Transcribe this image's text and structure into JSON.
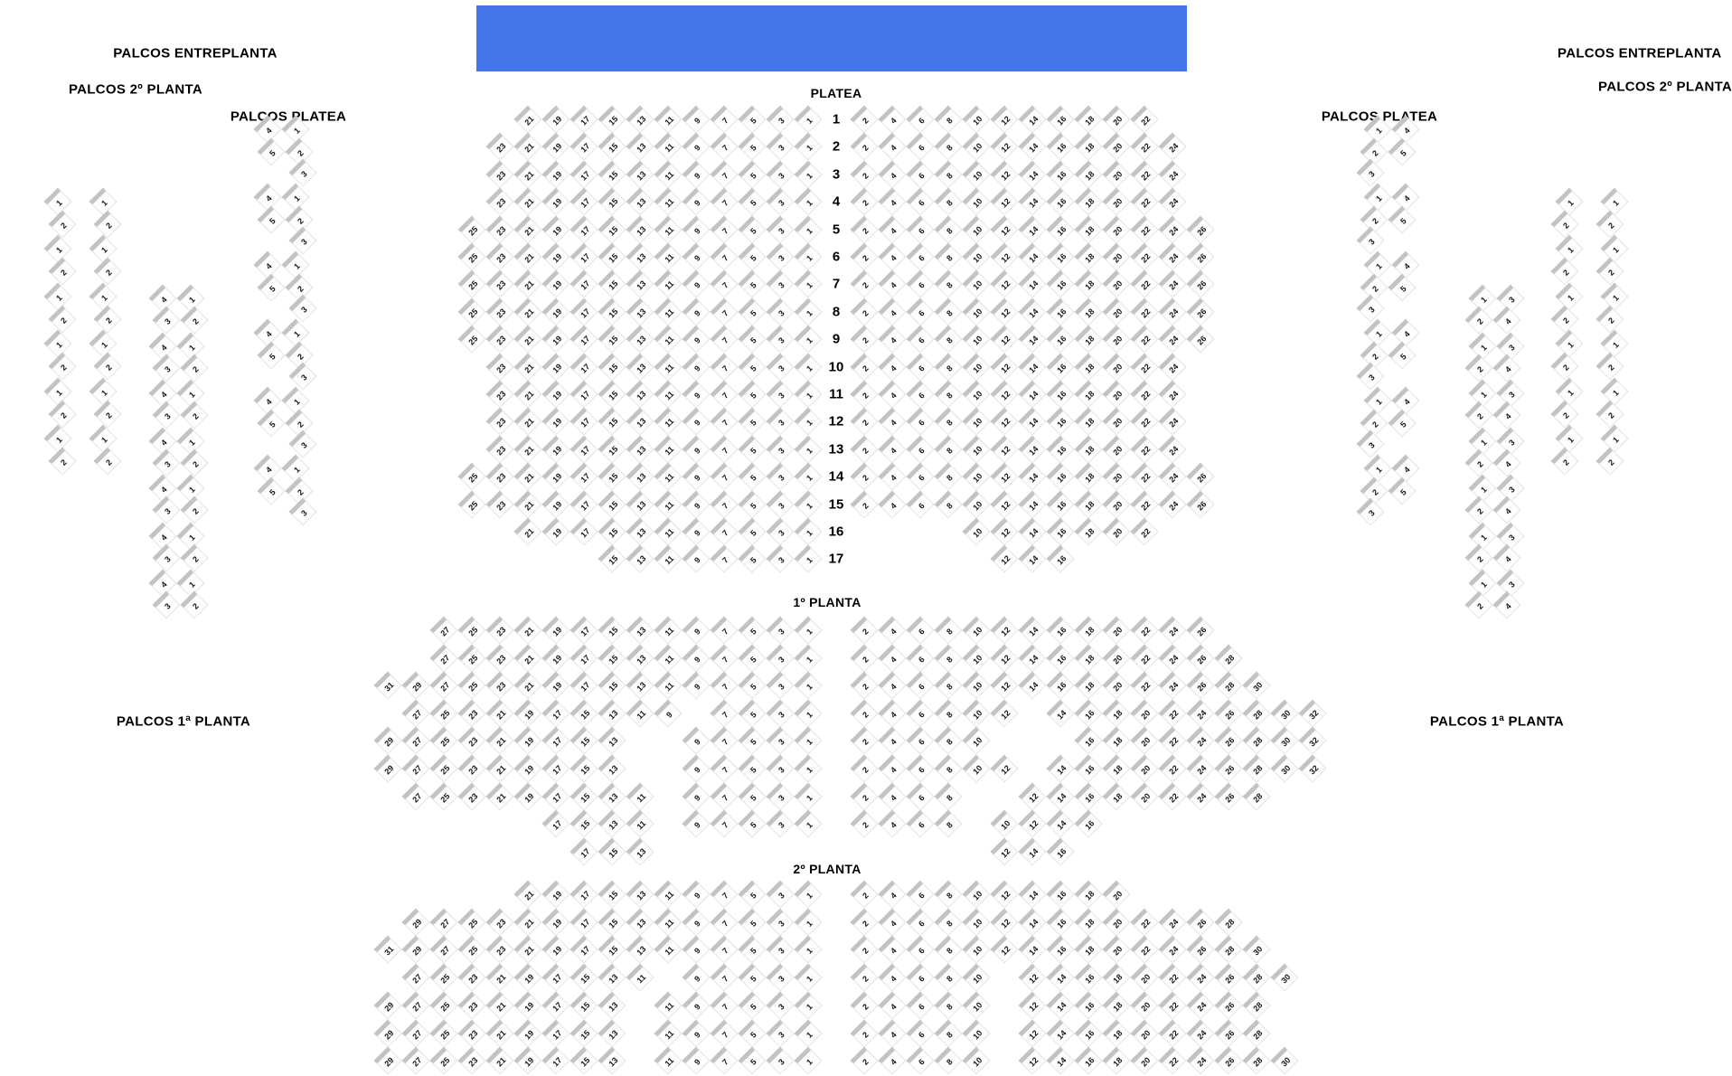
{
  "stage": {
    "color": "#4475E8"
  },
  "section_labels": {
    "platea": "PLATEA",
    "planta1": "1º PLANTA",
    "planta2": "2º PLANTA"
  },
  "palco_labels": {
    "left_entreplanta": "PALCOS ENTREPLANTA",
    "left_planta2": "PALCOS 2º PLANTA",
    "left_platea": "PALCOS PLATEA",
    "left_planta1": "PALCOS 1ª PLANTA",
    "right_entreplanta": "PALCOS ENTREPLANTA",
    "right_planta2": "PALCOS 2º PLANTA",
    "right_platea": "PALCOS PLATEA",
    "right_planta1": "PALCOS 1ª PLANTA"
  },
  "platea": {
    "rows": [
      {
        "label": "1",
        "left": [
          21,
          19,
          17,
          15,
          13,
          11,
          9,
          7,
          5,
          3,
          1
        ],
        "right": [
          2,
          4,
          6,
          8,
          10,
          12,
          14,
          16,
          18,
          20,
          22
        ]
      },
      {
        "label": "2",
        "left": [
          23,
          21,
          19,
          17,
          15,
          13,
          11,
          9,
          7,
          5,
          3,
          1
        ],
        "right": [
          2,
          4,
          6,
          8,
          10,
          12,
          14,
          16,
          18,
          20,
          22,
          24
        ]
      },
      {
        "label": "3",
        "left": [
          23,
          21,
          19,
          17,
          15,
          13,
          11,
          9,
          7,
          5,
          3,
          1
        ],
        "right": [
          2,
          4,
          6,
          8,
          10,
          12,
          14,
          16,
          18,
          20,
          22,
          24
        ]
      },
      {
        "label": "4",
        "left": [
          23,
          21,
          19,
          17,
          15,
          13,
          11,
          9,
          7,
          5,
          3,
          1
        ],
        "right": [
          2,
          4,
          6,
          8,
          10,
          12,
          14,
          16,
          18,
          20,
          22,
          24
        ]
      },
      {
        "label": "5",
        "left": [
          25,
          23,
          21,
          19,
          17,
          15,
          13,
          11,
          9,
          7,
          5,
          3,
          1
        ],
        "right": [
          2,
          4,
          6,
          8,
          10,
          12,
          14,
          16,
          18,
          20,
          22,
          24,
          26
        ]
      },
      {
        "label": "6",
        "left": [
          25,
          23,
          21,
          19,
          17,
          15,
          13,
          11,
          9,
          7,
          5,
          3,
          1
        ],
        "right": [
          2,
          4,
          6,
          8,
          10,
          12,
          14,
          16,
          18,
          20,
          22,
          24,
          26
        ]
      },
      {
        "label": "7",
        "left": [
          25,
          23,
          21,
          19,
          17,
          15,
          13,
          11,
          9,
          7,
          5,
          3,
          1
        ],
        "right": [
          2,
          4,
          6,
          8,
          10,
          12,
          14,
          16,
          18,
          20,
          22,
          24,
          26
        ]
      },
      {
        "label": "8",
        "left": [
          25,
          23,
          21,
          19,
          17,
          15,
          13,
          11,
          9,
          7,
          5,
          3,
          1
        ],
        "right": [
          2,
          4,
          6,
          8,
          10,
          12,
          14,
          16,
          18,
          20,
          22,
          24,
          26
        ]
      },
      {
        "label": "9",
        "left": [
          25,
          23,
          21,
          19,
          17,
          15,
          13,
          11,
          9,
          7,
          5,
          3,
          1
        ],
        "right": [
          2,
          4,
          6,
          8,
          10,
          12,
          14,
          16,
          18,
          20,
          22,
          24,
          26
        ]
      },
      {
        "label": "10",
        "left": [
          23,
          21,
          19,
          17,
          15,
          13,
          11,
          9,
          7,
          5,
          3,
          1
        ],
        "right": [
          2,
          4,
          6,
          8,
          10,
          12,
          14,
          16,
          18,
          20,
          22,
          24
        ]
      },
      {
        "label": "11",
        "left": [
          23,
          21,
          19,
          17,
          15,
          13,
          11,
          9,
          7,
          5,
          3,
          1
        ],
        "right": [
          2,
          4,
          6,
          8,
          10,
          12,
          14,
          16,
          18,
          20,
          22,
          24
        ]
      },
      {
        "label": "12",
        "left": [
          23,
          21,
          19,
          17,
          15,
          13,
          11,
          9,
          7,
          5,
          3,
          1
        ],
        "right": [
          2,
          4,
          6,
          8,
          10,
          12,
          14,
          16,
          18,
          20,
          22,
          24
        ]
      },
      {
        "label": "13",
        "left": [
          23,
          21,
          19,
          17,
          15,
          13,
          11,
          9,
          7,
          5,
          3,
          1
        ],
        "right": [
          2,
          4,
          6,
          8,
          10,
          12,
          14,
          16,
          18,
          20,
          22,
          24
        ]
      },
      {
        "label": "14",
        "left": [
          25,
          23,
          21,
          19,
          17,
          15,
          13,
          11,
          9,
          7,
          5,
          3,
          1
        ],
        "right": [
          2,
          4,
          6,
          8,
          10,
          12,
          14,
          16,
          18,
          20,
          22,
          24,
          26
        ]
      },
      {
        "label": "15",
        "left": [
          25,
          23,
          21,
          19,
          17,
          15,
          13,
          11,
          9,
          7,
          5,
          3,
          1
        ],
        "right": [
          2,
          4,
          6,
          8,
          10,
          12,
          14,
          16,
          18,
          20,
          22,
          24,
          26
        ]
      },
      {
        "label": "16",
        "left": [
          21,
          19,
          17,
          15,
          13,
          11,
          9,
          7,
          5,
          3,
          1
        ],
        "right": [
          10,
          12,
          14,
          16,
          18,
          20,
          22
        ]
      },
      {
        "label": "17",
        "left": [
          15,
          13,
          11,
          9,
          7,
          5,
          3,
          1
        ],
        "right": [
          12,
          14,
          16
        ]
      }
    ]
  },
  "planta1": {
    "rows": [
      {
        "left": [
          27,
          25,
          23,
          21,
          19,
          17,
          15,
          13,
          11,
          9,
          7,
          5,
          3,
          1
        ],
        "right": [
          2,
          4,
          6,
          8,
          10,
          12,
          14,
          16,
          18,
          20,
          22,
          24,
          26
        ]
      },
      {
        "left": [
          27,
          25,
          23,
          21,
          19,
          17,
          15,
          13,
          11,
          9,
          7,
          5,
          3,
          1
        ],
        "right": [
          2,
          4,
          6,
          8,
          10,
          12,
          14,
          16,
          18,
          20,
          22,
          24,
          26,
          28
        ]
      },
      {
        "left": [
          31,
          29,
          27,
          25,
          23,
          21,
          19,
          17,
          15,
          13,
          11,
          9,
          7,
          5,
          3,
          1
        ],
        "right": [
          2,
          4,
          6,
          8,
          10,
          12,
          14,
          16,
          18,
          20,
          22,
          24,
          26,
          28,
          30
        ]
      },
      {
        "left": [
          27,
          25,
          23,
          21,
          19,
          17,
          15,
          13,
          11,
          9,
          7,
          5,
          3,
          1
        ],
        "right": [
          2,
          4,
          6,
          8,
          10,
          12,
          14,
          16,
          18,
          20,
          22,
          24,
          26,
          28,
          30,
          32
        ],
        "shift_left_from": 9,
        "shift_right_from": 14
      },
      {
        "left": [
          29,
          27,
          25,
          23,
          21,
          19,
          17,
          15,
          13,
          9,
          7,
          5,
          3,
          1
        ],
        "right": [
          2,
          4,
          6,
          8,
          10,
          16,
          18,
          20,
          22,
          24,
          26,
          28,
          30,
          32
        ],
        "shift_left_from": 13,
        "shift_right_from": 16
      },
      {
        "left": [
          29,
          27,
          25,
          23,
          21,
          19,
          17,
          15,
          13,
          9,
          7,
          5,
          3,
          1
        ],
        "right": [
          2,
          4,
          6,
          8,
          10,
          12,
          14,
          16,
          18,
          20,
          22,
          24,
          26,
          28,
          30,
          32
        ],
        "shift_left_from": 13,
        "shift_right_from": 14
      },
      {
        "left": [
          27,
          25,
          23,
          21,
          19,
          17,
          15,
          13,
          11,
          9,
          7,
          5,
          3,
          1
        ],
        "right": [
          2,
          4,
          6,
          8,
          12,
          14,
          16,
          18,
          20,
          22,
          24,
          26,
          28
        ],
        "shift_left_from": 11,
        "shift_right_from": 12
      },
      {
        "left": [
          17,
          15,
          13,
          11,
          9,
          7,
          5,
          3,
          1
        ],
        "right": [
          2,
          4,
          6,
          8,
          10,
          12,
          14,
          16
        ],
        "shift_left_from": 11,
        "shift_right_from": 10
      },
      {
        "left": [
          17,
          15,
          13
        ],
        "right": [
          12,
          14,
          16
        ]
      }
    ]
  },
  "planta2": {
    "rows": [
      {
        "left": [
          21,
          19,
          17,
          15,
          13,
          11,
          9,
          7,
          5,
          3,
          1
        ],
        "right": [
          2,
          4,
          6,
          8,
          10,
          12,
          14,
          16,
          18,
          20
        ]
      },
      {
        "left": [
          29,
          27,
          25,
          23,
          21,
          19,
          17,
          15,
          13,
          11,
          9,
          7,
          5,
          3,
          1
        ],
        "right": [
          2,
          4,
          6,
          8,
          10,
          12,
          14,
          16,
          18,
          20,
          22,
          24,
          26,
          28
        ]
      },
      {
        "left": [
          31,
          29,
          27,
          25,
          23,
          21,
          19,
          17,
          15,
          13,
          11,
          9,
          7,
          5,
          3,
          1
        ],
        "right": [
          2,
          4,
          6,
          8,
          10,
          12,
          14,
          16,
          18,
          20,
          22,
          24,
          26,
          28,
          30
        ]
      },
      {
        "left": [
          27,
          25,
          23,
          21,
          19,
          17,
          15,
          13,
          11,
          9,
          7,
          5,
          3,
          1
        ],
        "right": [
          2,
          4,
          6,
          8,
          10,
          12,
          14,
          16,
          18,
          20,
          22,
          24,
          26,
          28,
          30
        ],
        "shift_left_from": 11,
        "shift_right_from": 12
      },
      {
        "left": [
          29,
          27,
          25,
          23,
          21,
          19,
          17,
          15,
          13,
          11,
          9,
          7,
          5,
          3,
          1
        ],
        "right": [
          2,
          4,
          6,
          8,
          10,
          12,
          14,
          16,
          18,
          20,
          22,
          24,
          26,
          28
        ],
        "shift_left_from": 13,
        "shift_right_from": 12
      },
      {
        "left": [
          29,
          27,
          25,
          23,
          21,
          19,
          17,
          15,
          13,
          11,
          9,
          7,
          5,
          3,
          1
        ],
        "right": [
          2,
          4,
          6,
          8,
          10,
          12,
          14,
          16,
          18,
          20,
          22,
          24,
          26,
          28
        ],
        "shift_left_from": 13,
        "shift_right_from": 12
      },
      {
        "left": [
          29,
          27,
          25,
          23,
          21,
          19,
          17,
          15,
          13,
          11,
          9,
          7,
          5,
          3,
          1
        ],
        "right": [
          2,
          4,
          6,
          8,
          10,
          12,
          14,
          16,
          18,
          20,
          22,
          24,
          26,
          28,
          30
        ],
        "shift_left_from": 13,
        "shift_right_from": 12
      }
    ]
  },
  "palcos": {
    "left_pairs": {
      "columns": 2,
      "groups": 6,
      "rows": [
        [
          "1"
        ],
        [
          "2"
        ]
      ]
    },
    "left_platea_boxes": {
      "groups": 6,
      "rows": [
        [
          "4",
          "1"
        ],
        [
          "5",
          "2"
        ],
        [
          null,
          "3"
        ]
      ]
    },
    "left_planta1_boxes": {
      "groups": 7,
      "rows": [
        [
          "4",
          "1"
        ],
        [
          "3",
          "2"
        ]
      ]
    },
    "right_pairs": {
      "columns": 2,
      "groups": 6,
      "rows": [
        [
          "1"
        ],
        [
          "2"
        ]
      ]
    },
    "right_platea_boxes": {
      "groups": 6,
      "rows": [
        [
          "1",
          "4"
        ],
        [
          "2",
          "5"
        ],
        [
          "3",
          null
        ]
      ]
    },
    "right_planta1_boxes": {
      "groups": 7,
      "rows": [
        [
          "1",
          "3"
        ],
        [
          "2",
          "4"
        ]
      ]
    }
  }
}
